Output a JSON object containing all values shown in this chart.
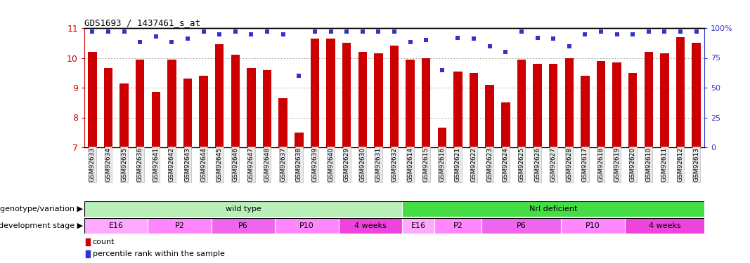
{
  "title": "GDS1693 / 1437461_s_at",
  "samples": [
    "GSM92633",
    "GSM92634",
    "GSM92635",
    "GSM92636",
    "GSM92641",
    "GSM92642",
    "GSM92643",
    "GSM92644",
    "GSM92645",
    "GSM92646",
    "GSM92647",
    "GSM92648",
    "GSM92637",
    "GSM92638",
    "GSM92639",
    "GSM92640",
    "GSM92629",
    "GSM92630",
    "GSM92631",
    "GSM92632",
    "GSM92614",
    "GSM92615",
    "GSM92616",
    "GSM92621",
    "GSM92622",
    "GSM92623",
    "GSM92624",
    "GSM92625",
    "GSM92626",
    "GSM92627",
    "GSM92628",
    "GSM92617",
    "GSM92618",
    "GSM92619",
    "GSM92620",
    "GSM92610",
    "GSM92611",
    "GSM92612",
    "GSM92613"
  ],
  "counts": [
    10.2,
    9.65,
    9.15,
    9.95,
    8.85,
    9.95,
    9.3,
    9.4,
    10.45,
    10.1,
    9.65,
    9.6,
    8.65,
    7.5,
    10.65,
    10.65,
    10.5,
    10.2,
    10.15,
    10.4,
    9.95,
    10.0,
    7.65,
    9.55,
    9.5,
    9.1,
    8.5,
    9.95,
    9.8,
    9.8,
    10.0,
    9.4,
    9.9,
    9.85,
    9.5,
    10.2,
    10.15,
    10.7,
    10.5
  ],
  "percentile": [
    97,
    97,
    97,
    88,
    93,
    88,
    91,
    97,
    95,
    97,
    95,
    97,
    95,
    60,
    97,
    97,
    97,
    97,
    97,
    97,
    88,
    90,
    65,
    92,
    91,
    85,
    80,
    97,
    92,
    91,
    85,
    95,
    97,
    95,
    95,
    97,
    97,
    97,
    97
  ],
  "ylim_left": [
    7,
    11
  ],
  "ylim_right": [
    0,
    100
  ],
  "bar_color": "#cc0000",
  "dot_color": "#3333cc",
  "bar_width": 0.55,
  "genotype_groups": [
    {
      "label": "wild type",
      "start": 0,
      "end": 20,
      "color": "#b8f0b8"
    },
    {
      "label": "Nrl deficient",
      "start": 20,
      "end": 39,
      "color": "#44dd44"
    }
  ],
  "dev_stage_groups": [
    {
      "label": "E16",
      "start": 0,
      "end": 4,
      "color": "#ffaaff"
    },
    {
      "label": "P2",
      "start": 4,
      "end": 8,
      "color": "#ff88ff"
    },
    {
      "label": "P6",
      "start": 8,
      "end": 12,
      "color": "#ee66ee"
    },
    {
      "label": "P10",
      "start": 12,
      "end": 16,
      "color": "#ff88ff"
    },
    {
      "label": "4 weeks",
      "start": 16,
      "end": 20,
      "color": "#ee44dd"
    },
    {
      "label": "E16",
      "start": 20,
      "end": 22,
      "color": "#ffaaff"
    },
    {
      "label": "P2",
      "start": 22,
      "end": 25,
      "color": "#ff88ff"
    },
    {
      "label": "P6",
      "start": 25,
      "end": 30,
      "color": "#ee66ee"
    },
    {
      "label": "P10",
      "start": 30,
      "end": 34,
      "color": "#ff88ff"
    },
    {
      "label": "4 weeks",
      "start": 34,
      "end": 39,
      "color": "#ee44dd"
    }
  ],
  "geno_label": "genotype/variation",
  "dev_label": "development stage",
  "background_color": "#ffffff",
  "grid_color": "#888888",
  "yticks_left": [
    7,
    8,
    9,
    10,
    11
  ],
  "yticks_right": [
    0,
    25,
    50,
    75,
    100
  ],
  "ytick_labels_right": [
    "0",
    "25",
    "50",
    "75",
    "100%"
  ]
}
